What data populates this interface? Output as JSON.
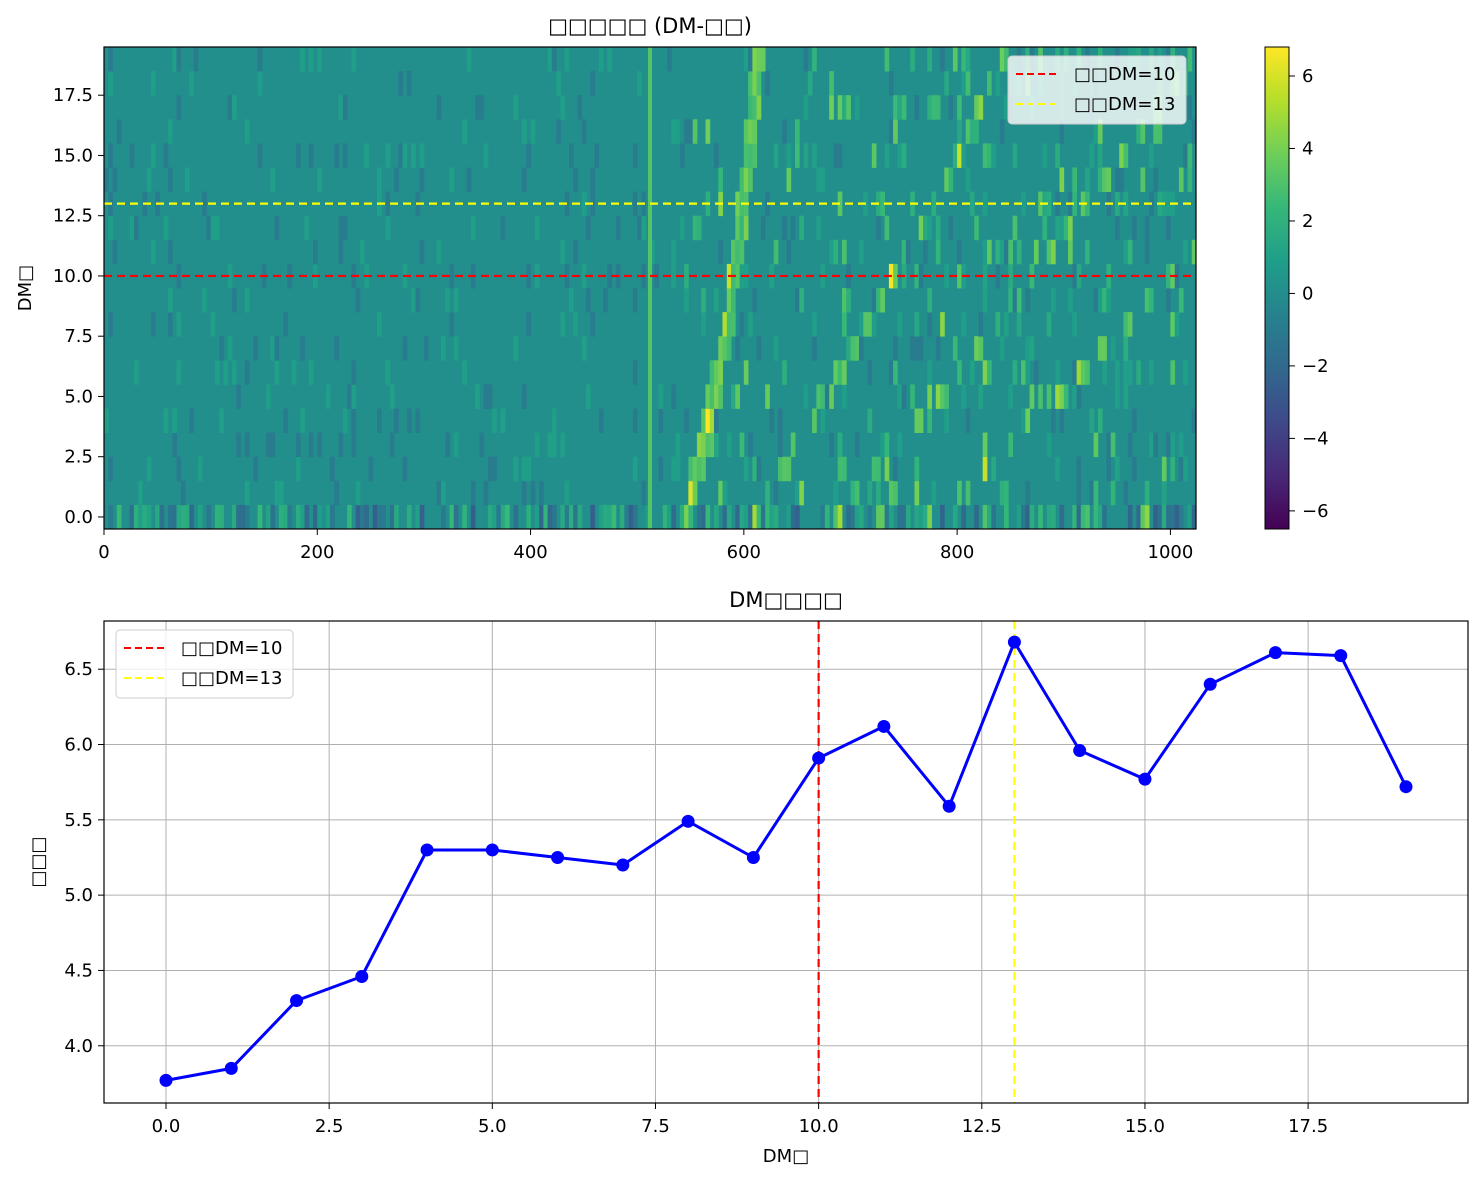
{
  "colors": {
    "red_line": "#ff0000",
    "yellow_line": "#ffff00",
    "series_line": "#0000ff",
    "grid": "#b0b0b0",
    "viridis": [
      "#440154",
      "#482878",
      "#3e4989",
      "#31688e",
      "#26828e",
      "#1f9e89",
      "#35b779",
      "#6ece58",
      "#b5de2b",
      "#fde725"
    ]
  },
  "chart_data": [
    {
      "type": "heatmap",
      "title": "□□□□□ (DM-□□)",
      "xlabel": "",
      "ylabel": "DM□",
      "xlim": [
        0,
        1024
      ],
      "ylim": [
        -0.5,
        19.5
      ],
      "x_ticks": [
        "0",
        "200",
        "400",
        "600",
        "800",
        "1000"
      ],
      "y_ticks": [
        "0.0",
        "2.5",
        "5.0",
        "7.5",
        "10.0",
        "12.5",
        "15.0",
        "17.5"
      ],
      "colorbar": {
        "range": [
          -6.5,
          6.8
        ],
        "ticks": [
          "6",
          "4",
          "2",
          "0",
          "−2",
          "−4",
          "−6"
        ]
      },
      "hlines": [
        {
          "value": 10,
          "label": "□□DM=10",
          "color": "red",
          "style": "dashed"
        },
        {
          "value": 13,
          "label": "□□DM=13",
          "color": "yellow",
          "style": "dashed"
        }
      ],
      "legend_position": "upper-right",
      "features": {
        "vertical_stripe_x": 512,
        "main_curve": [
          [
            545,
            0
          ],
          [
            565,
            4
          ],
          [
            583,
            8
          ],
          [
            595,
            12
          ],
          [
            605,
            16
          ],
          [
            612,
            19.5
          ]
        ]
      }
    },
    {
      "type": "line",
      "title": "DM□□□□",
      "xlabel": "DM□",
      "ylabel": "□□□",
      "xlim": [
        -0.95,
        19.95
      ],
      "ylim": [
        3.62,
        6.82
      ],
      "x_ticks": [
        "0.0",
        "2.5",
        "5.0",
        "7.5",
        "10.0",
        "12.5",
        "15.0",
        "17.5"
      ],
      "y_ticks": [
        "4.0",
        "4.5",
        "5.0",
        "5.5",
        "6.0",
        "6.5"
      ],
      "grid": true,
      "x": [
        0,
        1,
        2,
        3,
        4,
        5,
        6,
        7,
        8,
        9,
        10,
        11,
        12,
        13,
        14,
        15,
        16,
        17,
        18,
        19
      ],
      "y": [
        3.77,
        3.85,
        4.3,
        4.46,
        5.3,
        5.3,
        5.25,
        5.2,
        5.49,
        5.25,
        5.91,
        6.12,
        5.59,
        6.68,
        5.96,
        5.77,
        6.4,
        6.61,
        6.59,
        5.72
      ],
      "vlines": [
        {
          "value": 10,
          "label": "□□DM=10",
          "color": "red",
          "style": "dashed"
        },
        {
          "value": 13,
          "label": "□□DM=13",
          "color": "yellow",
          "style": "dashed"
        }
      ],
      "legend_position": "upper-left"
    }
  ]
}
